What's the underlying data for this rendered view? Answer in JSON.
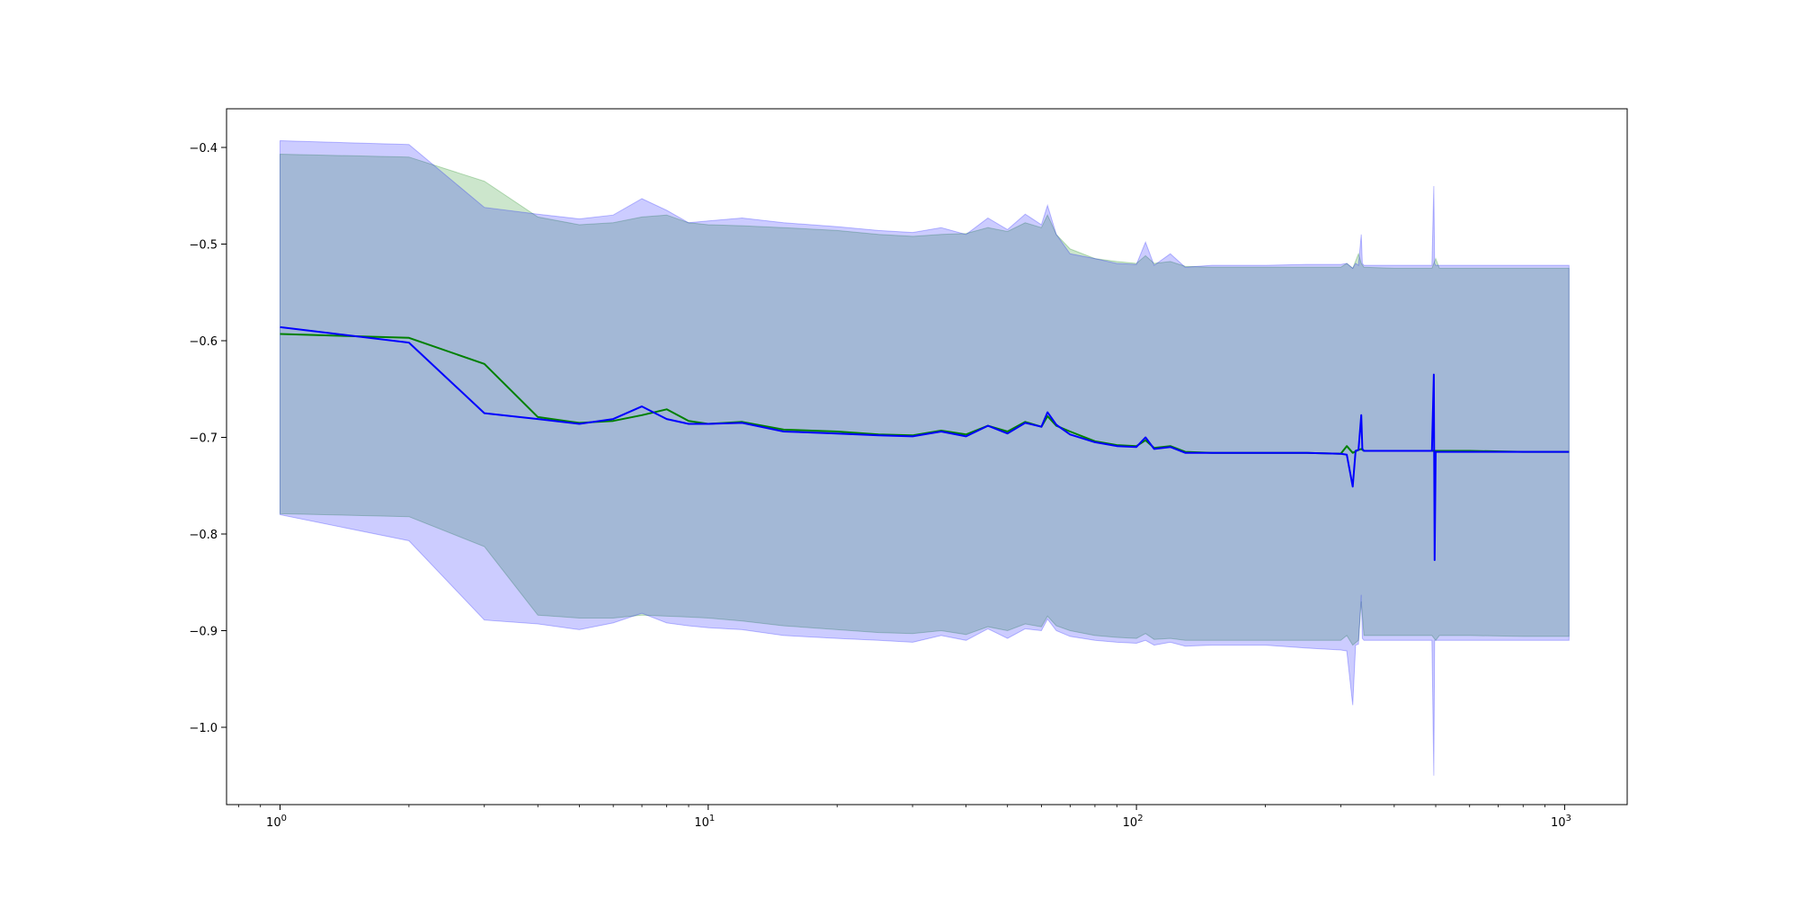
{
  "chart_data": {
    "type": "line",
    "title": "",
    "xlabel": "",
    "ylabel": "",
    "x_scale": "log",
    "xlim": [
      0.75,
      1400
    ],
    "ylim": [
      -1.08,
      -0.36
    ],
    "grid": false,
    "legend": "none",
    "x_ticks": [
      {
        "value": 1,
        "base": "10",
        "exp": "0"
      },
      {
        "value": 10,
        "base": "10",
        "exp": "1"
      },
      {
        "value": 100,
        "base": "10",
        "exp": "2"
      },
      {
        "value": 1000,
        "base": "10",
        "exp": "3"
      }
    ],
    "y_ticks": [
      {
        "value": -0.4,
        "label": "−0.4"
      },
      {
        "value": -0.5,
        "label": "−0.5"
      },
      {
        "value": -0.6,
        "label": "−0.6"
      },
      {
        "value": -0.7,
        "label": "−0.7"
      },
      {
        "value": -0.8,
        "label": "−0.8"
      },
      {
        "value": -0.9,
        "label": "−0.9"
      },
      {
        "value": -1.0,
        "label": "−1.0"
      }
    ],
    "series": [
      {
        "color": "#008000",
        "band_color": "#008000",
        "band_opacity": 0.2,
        "x": [
          1,
          2,
          3,
          4,
          5,
          6,
          7,
          8,
          9,
          10,
          12,
          15,
          20,
          25,
          30,
          35,
          40,
          45,
          50,
          55,
          60,
          62,
          65,
          70,
          80,
          90,
          100,
          105,
          110,
          120,
          130,
          150,
          200,
          250,
          300,
          310,
          320,
          330,
          335,
          340,
          400,
          490,
          500,
          510,
          600,
          800,
          1024
        ],
        "y": [
          -0.593,
          -0.597,
          -0.624,
          -0.679,
          -0.685,
          -0.683,
          -0.677,
          -0.671,
          -0.683,
          -0.686,
          -0.684,
          -0.692,
          -0.694,
          -0.697,
          -0.698,
          -0.693,
          -0.697,
          -0.688,
          -0.694,
          -0.684,
          -0.689,
          -0.678,
          -0.688,
          -0.694,
          -0.704,
          -0.708,
          -0.709,
          -0.703,
          -0.711,
          -0.709,
          -0.715,
          -0.716,
          -0.716,
          -0.716,
          -0.717,
          -0.709,
          -0.716,
          -0.713,
          -0.712,
          -0.714,
          -0.714,
          -0.714,
          -0.714,
          -0.714,
          -0.714,
          -0.715,
          -0.715
        ],
        "upper": [
          -0.407,
          -0.41,
          -0.435,
          -0.472,
          -0.48,
          -0.478,
          -0.472,
          -0.47,
          -0.478,
          -0.48,
          -0.481,
          -0.483,
          -0.486,
          -0.49,
          -0.492,
          -0.49,
          -0.489,
          -0.483,
          -0.487,
          -0.478,
          -0.483,
          -0.47,
          -0.49,
          -0.505,
          -0.515,
          -0.518,
          -0.52,
          -0.512,
          -0.52,
          -0.518,
          -0.523,
          -0.524,
          -0.524,
          -0.524,
          -0.524,
          -0.52,
          -0.525,
          -0.51,
          -0.52,
          -0.524,
          -0.525,
          -0.525,
          -0.515,
          -0.525,
          -0.525,
          -0.525,
          -0.525
        ],
        "lower": [
          -0.779,
          -0.782,
          -0.813,
          -0.884,
          -0.887,
          -0.887,
          -0.884,
          -0.885,
          -0.886,
          -0.887,
          -0.89,
          -0.895,
          -0.899,
          -0.902,
          -0.903,
          -0.9,
          -0.904,
          -0.896,
          -0.9,
          -0.893,
          -0.896,
          -0.885,
          -0.895,
          -0.9,
          -0.905,
          -0.907,
          -0.908,
          -0.903,
          -0.909,
          -0.908,
          -0.91,
          -0.91,
          -0.91,
          -0.91,
          -0.91,
          -0.905,
          -0.915,
          -0.91,
          -0.87,
          -0.905,
          -0.905,
          -0.905,
          -0.91,
          -0.905,
          -0.905,
          -0.906,
          -0.906
        ]
      },
      {
        "color": "#0000ff",
        "band_color": "#0000ff",
        "band_opacity": 0.2,
        "x": [
          1,
          2,
          3,
          4,
          5,
          6,
          7,
          8,
          9,
          10,
          12,
          15,
          20,
          25,
          30,
          35,
          40,
          45,
          50,
          55,
          60,
          62,
          65,
          70,
          80,
          90,
          100,
          105,
          110,
          120,
          130,
          150,
          200,
          250,
          300,
          310,
          320,
          325,
          330,
          335,
          337,
          340,
          400,
          490,
          495,
          497,
          500,
          510,
          600,
          800,
          1024
        ],
        "y": [
          -0.586,
          -0.602,
          -0.675,
          -0.681,
          -0.686,
          -0.681,
          -0.668,
          -0.681,
          -0.686,
          -0.686,
          -0.685,
          -0.694,
          -0.696,
          -0.698,
          -0.699,
          -0.694,
          -0.699,
          -0.688,
          -0.696,
          -0.685,
          -0.689,
          -0.674,
          -0.687,
          -0.697,
          -0.705,
          -0.709,
          -0.71,
          -0.7,
          -0.712,
          -0.71,
          -0.716,
          -0.716,
          -0.716,
          -0.716,
          -0.717,
          -0.718,
          -0.751,
          -0.714,
          -0.713,
          -0.677,
          -0.712,
          -0.714,
          -0.714,
          -0.714,
          -0.635,
          -0.827,
          -0.715,
          -0.715,
          -0.715,
          -0.715,
          -0.715
        ],
        "upper": [
          -0.393,
          -0.397,
          -0.462,
          -0.469,
          -0.474,
          -0.47,
          -0.453,
          -0.465,
          -0.478,
          -0.476,
          -0.473,
          -0.478,
          -0.482,
          -0.486,
          -0.488,
          -0.483,
          -0.49,
          -0.473,
          -0.485,
          -0.469,
          -0.48,
          -0.46,
          -0.49,
          -0.51,
          -0.515,
          -0.52,
          -0.521,
          -0.498,
          -0.522,
          -0.51,
          -0.524,
          -0.522,
          -0.522,
          -0.521,
          -0.521,
          -0.52,
          -0.525,
          -0.52,
          -0.522,
          -0.49,
          -0.52,
          -0.522,
          -0.522,
          -0.522,
          -0.44,
          -0.52,
          -0.522,
          -0.522,
          -0.522,
          -0.522,
          -0.522
        ],
        "lower": [
          -0.78,
          -0.807,
          -0.889,
          -0.893,
          -0.899,
          -0.892,
          -0.882,
          -0.892,
          -0.895,
          -0.897,
          -0.899,
          -0.905,
          -0.908,
          -0.91,
          -0.912,
          -0.905,
          -0.91,
          -0.898,
          -0.908,
          -0.898,
          -0.9,
          -0.888,
          -0.9,
          -0.906,
          -0.91,
          -0.912,
          -0.913,
          -0.91,
          -0.915,
          -0.912,
          -0.916,
          -0.915,
          -0.915,
          -0.918,
          -0.92,
          -0.921,
          -0.977,
          -0.915,
          -0.914,
          -0.863,
          -0.908,
          -0.91,
          -0.91,
          -0.91,
          -1.05,
          -0.91,
          -0.91,
          -0.91,
          -0.91,
          -0.91,
          -0.91
        ]
      }
    ]
  }
}
